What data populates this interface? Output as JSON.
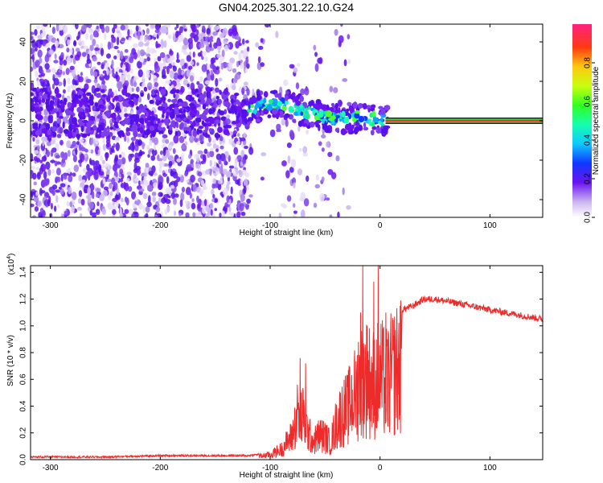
{
  "chart_data": [
    {
      "type": "heatmap",
      "title": "GN04.2025.301.22.10.G24",
      "xlabel": "Height of straight line (km)",
      "ylabel": "Frequency (Hz)",
      "xlim": [
        -318,
        148
      ],
      "ylim": [
        -49,
        49
      ],
      "xticks": [
        -300,
        -200,
        -100,
        0,
        100
      ],
      "yticks": [
        -40,
        -20,
        0,
        20,
        40
      ],
      "colorbar": {
        "label": "Normalized spectral amplitude",
        "range": [
          0.0,
          1.0
        ],
        "ticks": [
          0.0,
          0.2,
          0.4,
          0.6,
          0.8
        ]
      },
      "ridge": {
        "description_points": [
          [
            -130,
            4
          ],
          [
            -110,
            7
          ],
          [
            -100,
            9
          ],
          [
            -90,
            8
          ],
          [
            -80,
            7
          ],
          [
            -70,
            5
          ],
          [
            -60,
            3
          ],
          [
            -50,
            2
          ],
          [
            -40,
            1
          ],
          [
            -30,
            0
          ],
          [
            -20,
            2
          ],
          [
            -10,
            1
          ],
          [
            0,
            0
          ],
          [
            148,
            0
          ]
        ],
        "steady_segment": {
          "x_start": 5,
          "x_end": 148,
          "frequency": 0,
          "amplitude": 0.95
        }
      }
    },
    {
      "type": "line",
      "title": "",
      "xlabel": "Height of straight line (km)",
      "ylabel": "SNR (10 * v/v)",
      "yscale_label": "(x10",
      "yscale_exp": "4",
      "yscale_close": ")",
      "xlim": [
        -318,
        148
      ],
      "ylim": [
        0.0,
        1.45
      ],
      "xticks": [
        -300,
        -200,
        -100,
        0,
        100
      ],
      "yticks": [
        0.0,
        0.2,
        0.4,
        0.6,
        0.8,
        1.0,
        1.2,
        1.4
      ],
      "ytick_labels": [
        "0.0",
        "0.2",
        "0.4",
        "0.6",
        "0.8",
        "1.0",
        "1.2",
        "1.4"
      ],
      "series": [
        {
          "name": "SNR",
          "color": "#ee2b2b",
          "envelope": {
            "x": [
              -318,
              -250,
              -200,
              -150,
              -120,
              -110,
              -100,
              -90,
              -80,
              -75,
              -70,
              -65,
              -60,
              -55,
              -50,
              -45,
              -40,
              -35,
              -30,
              -25,
              -20,
              -15,
              -10,
              -5,
              0,
              5,
              10,
              15,
              20,
              30,
              40,
              50,
              70,
              100,
              148
            ],
            "y": [
              0.02,
              0.02,
              0.03,
              0.03,
              0.03,
              0.04,
              0.06,
              0.12,
              0.28,
              0.55,
              0.5,
              0.3,
              0.22,
              0.3,
              0.27,
              0.2,
              0.42,
              0.55,
              0.6,
              0.72,
              0.85,
              1.0,
              0.95,
              0.9,
              1.0,
              0.9,
              1.0,
              1.08,
              1.12,
              1.15,
              1.2,
              1.2,
              1.17,
              1.12,
              1.05
            ]
          },
          "spikes": [
            [
              -73,
              0.76
            ],
            [
              -68,
              0.72
            ],
            [
              -20,
              0.88
            ],
            [
              -18,
              1.1
            ],
            [
              -16,
              1.45
            ],
            [
              -12,
              1.0
            ],
            [
              -6,
              1.33
            ],
            [
              -2,
              1.45
            ],
            [
              5,
              1.1
            ],
            [
              18,
              1.15
            ]
          ]
        }
      ]
    }
  ]
}
